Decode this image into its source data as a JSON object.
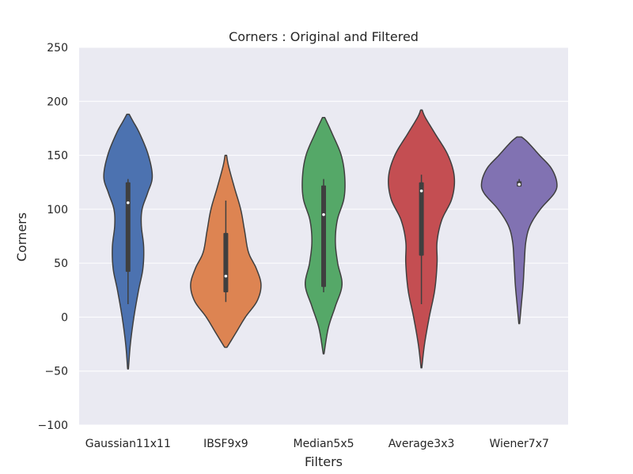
{
  "chart_data": {
    "type": "violin",
    "title": "Corners :  Original and Filtered",
    "xlabel": "Filters",
    "ylabel": "Corners",
    "ylim": [
      -100,
      250
    ],
    "yticks": [
      -100,
      -50,
      0,
      50,
      100,
      150,
      200,
      250
    ],
    "ytick_labels": [
      "−100",
      "−50",
      "0",
      "50",
      "100",
      "150",
      "200",
      "250"
    ],
    "grid": true,
    "categories": [
      "Gaussian11x11",
      "IBSF9x9",
      "Median5x5",
      "Average3x3",
      "Wiener7x7"
    ],
    "colors": [
      "#4c72b0",
      "#dd8452",
      "#55a868",
      "#c44e52",
      "#8172b2"
    ],
    "background": "#eaeaf2",
    "series": [
      {
        "category": "Gaussian11x11",
        "median": 106,
        "q1": 42,
        "q3": 125,
        "whisker_low": 12,
        "whisker_high": 128,
        "profile": [
          [
            -48,
            0.01
          ],
          [
            -25,
            0.06
          ],
          [
            0,
            0.15
          ],
          [
            25,
            0.27
          ],
          [
            45,
            0.38
          ],
          [
            65,
            0.4
          ],
          [
            85,
            0.34
          ],
          [
            100,
            0.36
          ],
          [
            115,
            0.5
          ],
          [
            130,
            0.62
          ],
          [
            150,
            0.52
          ],
          [
            170,
            0.3
          ],
          [
            182,
            0.12
          ],
          [
            188,
            0.03
          ]
        ]
      },
      {
        "category": "IBSF9x9",
        "median": 38,
        "q1": 23,
        "q3": 78,
        "whisker_low": 14,
        "whisker_high": 108,
        "profile": [
          [
            -28,
            0.03
          ],
          [
            -15,
            0.25
          ],
          [
            0,
            0.5
          ],
          [
            15,
            0.8
          ],
          [
            30,
            0.9
          ],
          [
            45,
            0.78
          ],
          [
            60,
            0.58
          ],
          [
            80,
            0.48
          ],
          [
            100,
            0.38
          ],
          [
            120,
            0.22
          ],
          [
            140,
            0.07
          ],
          [
            150,
            0.02
          ]
        ]
      },
      {
        "category": "Median5x5",
        "median": 95,
        "q1": 28,
        "q3": 122,
        "whisker_low": 23,
        "whisker_high": 128,
        "profile": [
          [
            -34,
            0.01
          ],
          [
            -10,
            0.12
          ],
          [
            10,
            0.3
          ],
          [
            30,
            0.47
          ],
          [
            50,
            0.36
          ],
          [
            70,
            0.3
          ],
          [
            90,
            0.35
          ],
          [
            110,
            0.52
          ],
          [
            130,
            0.54
          ],
          [
            150,
            0.45
          ],
          [
            170,
            0.22
          ],
          [
            185,
            0.03
          ]
        ]
      },
      {
        "category": "Average3x3",
        "median": 117,
        "q1": 57,
        "q3": 125,
        "whisker_low": 12,
        "whisker_high": 132,
        "profile": [
          [
            -47,
            0.01
          ],
          [
            -25,
            0.08
          ],
          [
            0,
            0.2
          ],
          [
            25,
            0.34
          ],
          [
            50,
            0.4
          ],
          [
            70,
            0.4
          ],
          [
            90,
            0.52
          ],
          [
            110,
            0.78
          ],
          [
            130,
            0.84
          ],
          [
            150,
            0.68
          ],
          [
            170,
            0.35
          ],
          [
            185,
            0.1
          ],
          [
            192,
            0.02
          ]
        ]
      },
      {
        "category": "Wiener7x7",
        "median": 123,
        "q1": 121,
        "q3": 126,
        "whisker_low": 121,
        "whisker_high": 128,
        "profile": [
          [
            -6,
            0.01
          ],
          [
            10,
            0.05
          ],
          [
            30,
            0.1
          ],
          [
            50,
            0.13
          ],
          [
            70,
            0.17
          ],
          [
            85,
            0.28
          ],
          [
            100,
            0.54
          ],
          [
            115,
            0.9
          ],
          [
            125,
            0.96
          ],
          [
            138,
            0.82
          ],
          [
            150,
            0.52
          ],
          [
            162,
            0.22
          ],
          [
            167,
            0.06
          ]
        ]
      }
    ]
  }
}
